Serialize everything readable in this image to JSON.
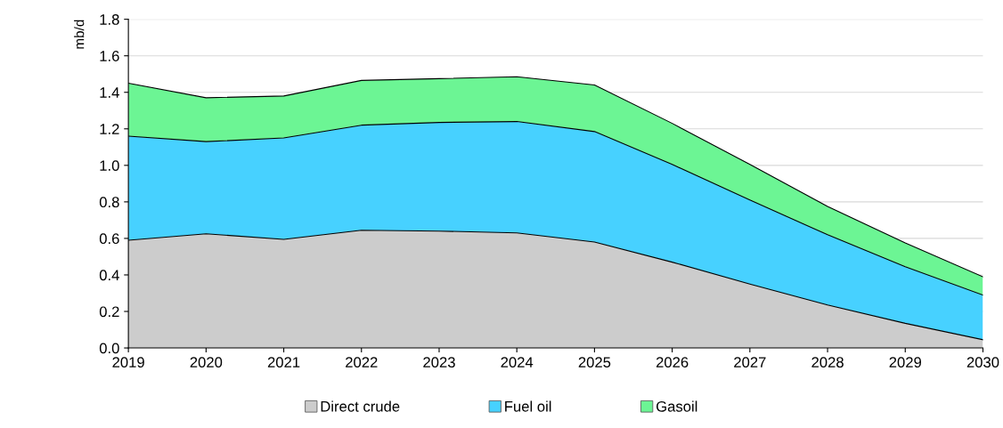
{
  "chart_data": {
    "type": "area",
    "stacked": true,
    "ylabel": "mb/d",
    "x": [
      2019,
      2020,
      2021,
      2022,
      2023,
      2024,
      2025,
      2026,
      2027,
      2028,
      2029,
      2030
    ],
    "series": [
      {
        "name": "Direct crude",
        "color": "#cccccc",
        "values": [
          0.59,
          0.625,
          0.595,
          0.645,
          0.64,
          0.63,
          0.58,
          0.47,
          0.35,
          0.235,
          0.135,
          0.045
        ]
      },
      {
        "name": "Fuel oil",
        "color": "#47d1ff",
        "values": [
          0.57,
          0.505,
          0.555,
          0.575,
          0.595,
          0.61,
          0.605,
          0.535,
          0.46,
          0.385,
          0.31,
          0.245
        ]
      },
      {
        "name": "Gasoil",
        "color": "#6cf594",
        "values": [
          0.29,
          0.24,
          0.23,
          0.245,
          0.24,
          0.245,
          0.255,
          0.225,
          0.195,
          0.155,
          0.13,
          0.1
        ]
      }
    ],
    "xlim": [
      2019,
      2030
    ],
    "xticks": [
      2019,
      2020,
      2021,
      2022,
      2023,
      2024,
      2025,
      2026,
      2027,
      2028,
      2029,
      2030
    ],
    "ylim": [
      0,
      1.8
    ],
    "yticks": [
      {
        "value": 0,
        "label": "0.0"
      },
      {
        "value": 0.2,
        "label": "0.2"
      },
      {
        "value": 0.4,
        "label": "0.4"
      },
      {
        "value": 0.6,
        "label": "0.6"
      },
      {
        "value": 0.8,
        "label": "0.8"
      },
      {
        "value": 1.0,
        "label": "1.0"
      },
      {
        "value": 1.2,
        "label": "1.2"
      },
      {
        "value": 1.4,
        "label": "1.4"
      },
      {
        "value": 1.6,
        "label": "1.6"
      },
      {
        "value": 1.8,
        "label": "1.8"
      }
    ],
    "grid": "y",
    "legend": "bottom"
  }
}
